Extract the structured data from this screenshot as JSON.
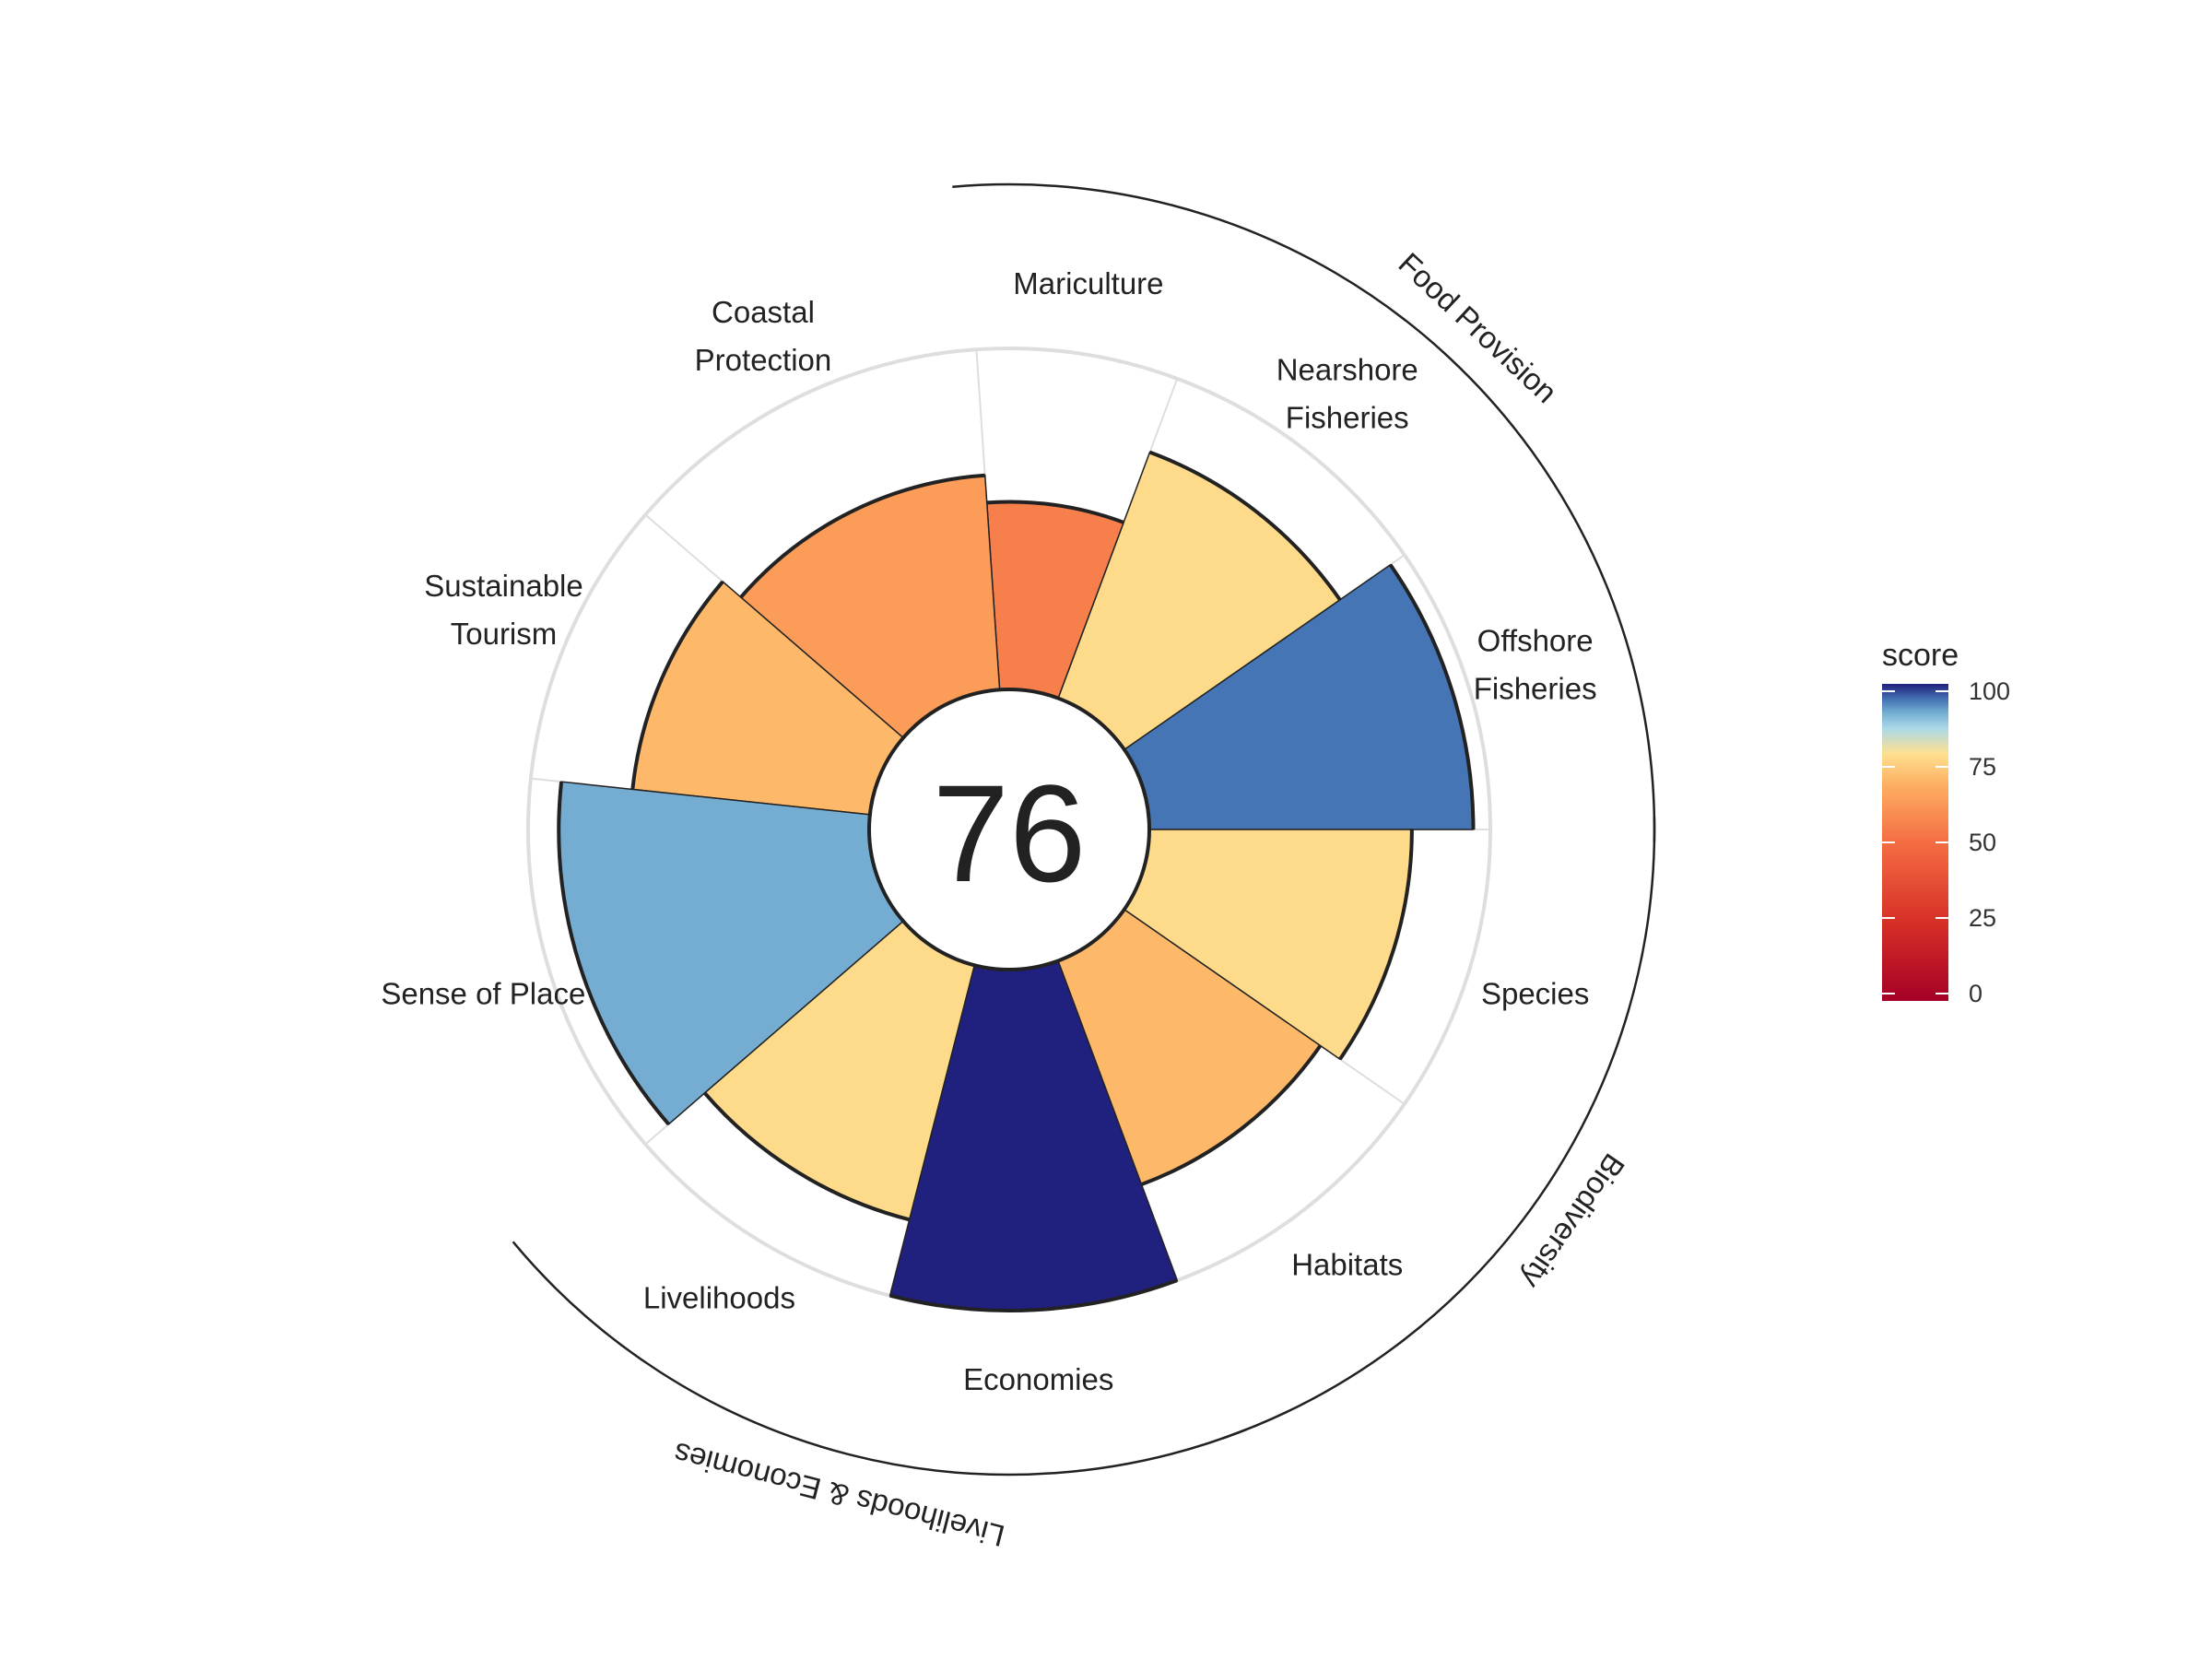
{
  "chart_data": {
    "type": "flower",
    "title": "",
    "center_score": "76",
    "max_score": 100,
    "petals": [
      {
        "label": [
          "Offshore",
          "Fisheries"
        ],
        "value": 95,
        "weight": 1.0
      },
      {
        "label": [
          "Nearshore",
          "Fisheries"
        ],
        "value": 77,
        "weight": 1.0
      },
      {
        "label": [
          "Mariculture"
        ],
        "value": 55,
        "weight": 0.7
      },
      {
        "label": [
          "Coastal",
          "Protection"
        ],
        "value": 63,
        "weight": 1.3
      },
      {
        "label": [
          "Sustainable",
          "Tourism"
        ],
        "value": 70,
        "weight": 1.0
      },
      {
        "label": [
          "Sense of Place"
        ],
        "value": 91,
        "weight": 1.35
      },
      {
        "label": [
          "Livelihoods"
        ],
        "value": 77,
        "weight": 1.0
      },
      {
        "label": [
          "Economies"
        ],
        "value": 100,
        "weight": 1.0
      },
      {
        "label": [
          "Habitats"
        ],
        "value": 70,
        "weight": 1.0
      },
      {
        "label": [
          "Species"
        ],
        "value": 77,
        "weight": 1.0
      }
    ],
    "groups": [
      {
        "label": "Food Provision",
        "petals": [
          0,
          1,
          2
        ]
      },
      {
        "label": "Biodiversity",
        "petals": [
          8,
          9
        ]
      },
      {
        "label": "Livelihoods & Economies",
        "petals": [
          6,
          7
        ]
      }
    ],
    "legend": {
      "title": "score",
      "placement": "right",
      "ticks": [
        0,
        25,
        50,
        75,
        100
      ],
      "colors": [
        "#a50026",
        "#d73027",
        "#f46d43",
        "#fdae61",
        "#fee090",
        "#abd9e9",
        "#74add1",
        "#4575b4",
        "#313695",
        "#20207e"
      ]
    },
    "colors": {
      "ring": "#dedede",
      "outline": "#222222"
    }
  }
}
